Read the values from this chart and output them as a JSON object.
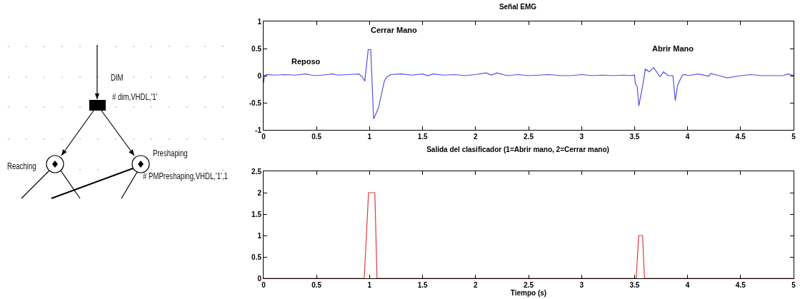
{
  "chart_data": [
    {
      "type": "other",
      "annotations": [
        "DIM",
        "# dim,VHDL,'1'",
        "Reaching",
        "Preshaping",
        "# PMPreshaping,VHDL,'1',1"
      ]
    },
    {
      "type": "line",
      "title": "Señal EMG",
      "grid": false,
      "line_style": "solid",
      "marker": "none",
      "xlim": [
        0,
        5
      ],
      "xticks": [
        0,
        0.5,
        1,
        1.5,
        2,
        2.5,
        3,
        3.5,
        4,
        4.5,
        5
      ],
      "ylim": [
        -1,
        1
      ],
      "yticks": [
        -1,
        -0.5,
        0,
        0.5,
        1
      ],
      "annotations": [
        "Reposo",
        "Cerrar Mano",
        "Abrir Mano"
      ],
      "series": [
        {
          "color": "#5050e6",
          "x": [
            0,
            0.01,
            0.03,
            0.1,
            0.2,
            0.3,
            0.4,
            0.45,
            0.5,
            0.6,
            0.65,
            0.7,
            0.8,
            0.9,
            0.93,
            0.955,
            0.987,
            1.011,
            1.038,
            1.06,
            1.083,
            1.139,
            1.16,
            1.2,
            1.3,
            1.4,
            1.5,
            1.55,
            1.6,
            1.7,
            1.8,
            1.9,
            2.0,
            2.1,
            2.15,
            2.2,
            2.3,
            2.4,
            2.5,
            2.6,
            2.7,
            2.8,
            2.9,
            3.0,
            3.1,
            3.2,
            3.3,
            3.4,
            3.45,
            3.5,
            3.507,
            3.525,
            3.54,
            3.575,
            3.602,
            3.64,
            3.68,
            3.74,
            3.773,
            3.818,
            3.862,
            3.884,
            3.907,
            3.951,
            3.98,
            4.0,
            4.1,
            4.2,
            4.218,
            4.3,
            4.373,
            4.5,
            4.6,
            4.7,
            4.8,
            4.9,
            4.95,
            5.0
          ],
          "values": [
            -0.13,
            0.0,
            0.02,
            0.01,
            0.02,
            0.01,
            0.03,
            0.01,
            0.0,
            0.02,
            0.03,
            0.01,
            0.02,
            0.03,
            -0.02,
            -0.1,
            0.48,
            0.48,
            -0.8,
            -0.7,
            -0.6,
            -0.1,
            -0.03,
            0.02,
            0.03,
            0.01,
            0.03,
            0.0,
            0.03,
            0.01,
            0.02,
            0.0,
            0.02,
            0.05,
            0.01,
            0.05,
            0.0,
            0.02,
            0.0,
            0.01,
            0.02,
            0.0,
            0.0,
            0.02,
            0.0,
            0.01,
            0.0,
            0.01,
            0.0,
            0.01,
            -0.15,
            -0.2,
            -0.56,
            -0.2,
            0.12,
            0.07,
            0.15,
            -0.02,
            0.07,
            0.0,
            0.0,
            -0.46,
            -0.17,
            0.01,
            0.02,
            0.0,
            0.03,
            -0.01,
            0.04,
            0.0,
            -0.04,
            0.0,
            0.02,
            0.0,
            0.0,
            0.0,
            0.03,
            0.0
          ]
        }
      ]
    },
    {
      "type": "line",
      "title": "Salida del clasificador (1=Abrir mano, 2=Cerrar mano)",
      "xlabel": "Tiempo (s)",
      "grid": false,
      "line_style": "solid",
      "marker": "none",
      "xlim": [
        0,
        5
      ],
      "xticks": [
        0,
        0.5,
        1,
        1.5,
        2,
        2.5,
        3,
        3.5,
        4,
        4.5,
        5
      ],
      "ylim": [
        0,
        2.5
      ],
      "yticks": [
        0,
        0.5,
        1,
        1.5,
        2,
        2.5
      ],
      "series": [
        {
          "color": "#e03a3a",
          "x": [
            0,
            0.95,
            0.99,
            1.05,
            1.07,
            3.515,
            3.539,
            3.576,
            3.593,
            5
          ],
          "values": [
            0,
            0,
            2,
            2,
            0,
            0,
            1,
            1,
            0,
            0
          ]
        }
      ]
    }
  ]
}
